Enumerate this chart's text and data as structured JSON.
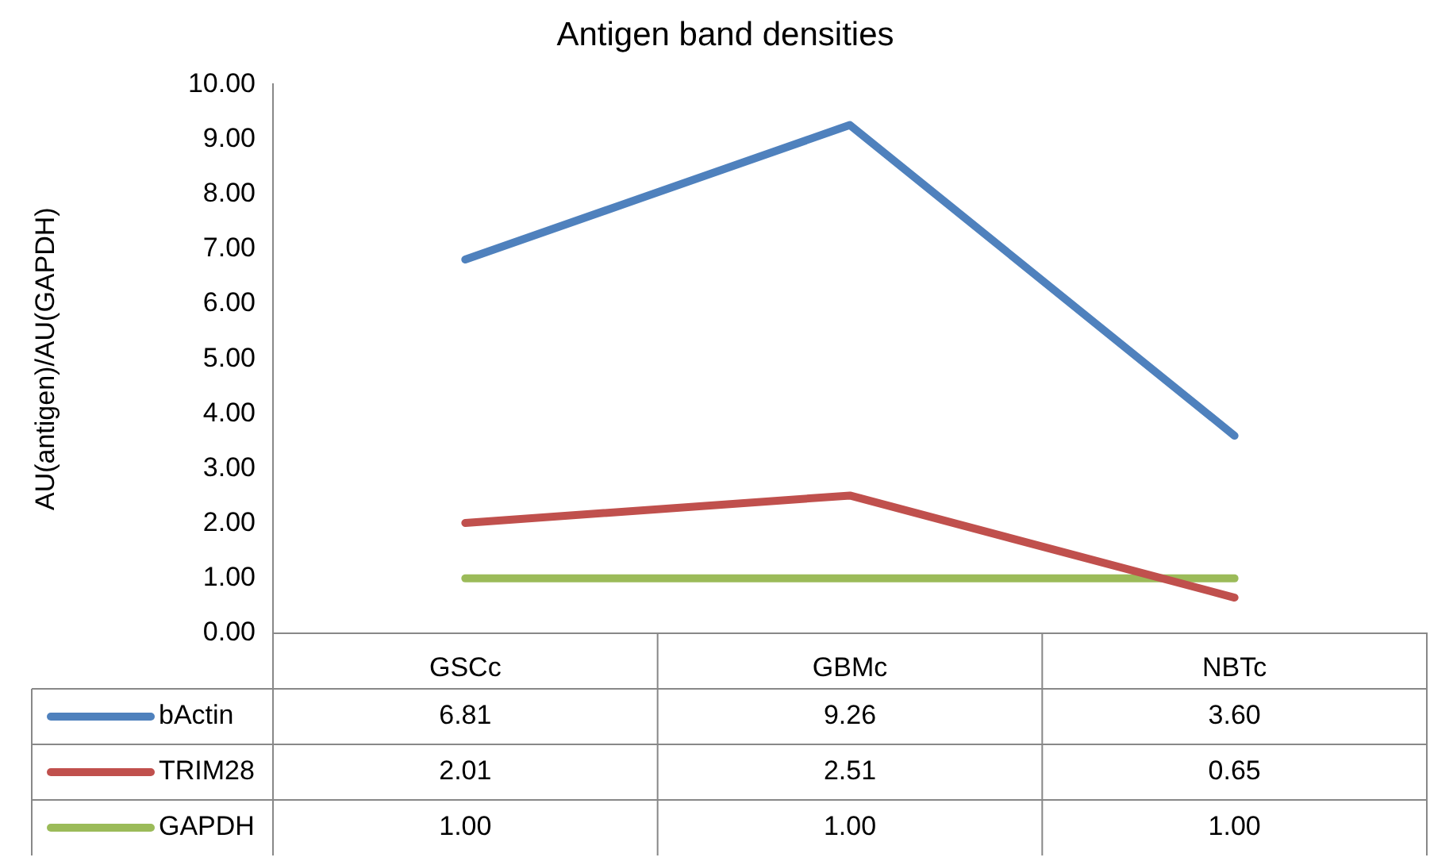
{
  "chart_data": {
    "type": "line",
    "title": "Antigen band densities",
    "ylabel": "AU(antigen)/AU(GAPDH)",
    "categories": [
      "GSCc",
      "GBMc",
      "NBTc"
    ],
    "series": [
      {
        "name": "bActin",
        "color": "#4f81bd",
        "values": [
          6.81,
          9.26,
          3.6
        ],
        "value_labels": [
          "6.81",
          "9.26",
          "3.60"
        ]
      },
      {
        "name": "TRIM28",
        "color": "#c0504d",
        "values": [
          2.01,
          2.51,
          0.65
        ],
        "value_labels": [
          "2.01",
          "2.51",
          "0.65"
        ]
      },
      {
        "name": "GAPDH",
        "color": "#9bbb59",
        "values": [
          1,
          1,
          1
        ],
        "value_labels": [
          "1.00",
          "1.00",
          "1.00"
        ]
      }
    ],
    "ylim": [
      0,
      10
    ],
    "yticks": [
      {
        "value": 0,
        "label": "0.00"
      },
      {
        "value": 1,
        "label": "1.00"
      },
      {
        "value": 2,
        "label": "2.00"
      },
      {
        "value": 3,
        "label": "3.00"
      },
      {
        "value": 4,
        "label": "4.00"
      },
      {
        "value": 5,
        "label": "5.00"
      },
      {
        "value": 6,
        "label": "6.00"
      },
      {
        "value": 7,
        "label": "7.00"
      },
      {
        "value": 8,
        "label": "8.00"
      },
      {
        "value": 9,
        "label": "9.00"
      },
      {
        "value": 10,
        "label": "10.00"
      }
    ],
    "grid": false,
    "legend": "bottom",
    "marker": "none",
    "line_style": "solid"
  }
}
